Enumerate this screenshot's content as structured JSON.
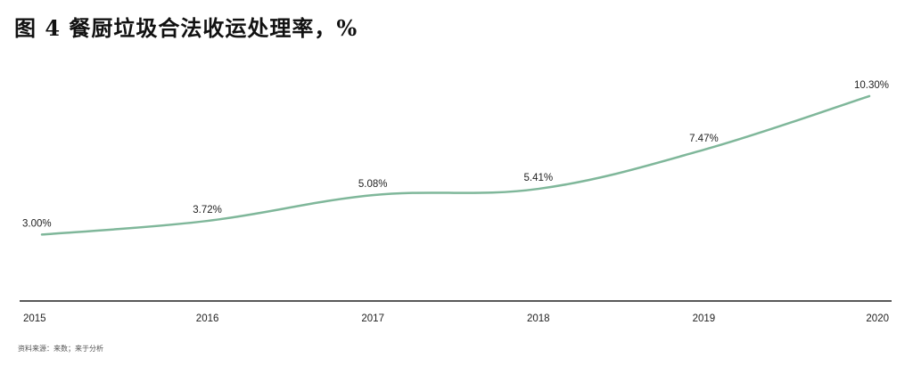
{
  "title": "图 4 餐厨垃圾合法收运处理率，%",
  "source": "资料来源：来数；来于分析",
  "colors": {
    "line": "#7fb79a",
    "axis": "#222222",
    "text": "#222222"
  },
  "chart_data": {
    "type": "line",
    "title": "图 4 餐厨垃圾合法收运处理率，%",
    "categories": [
      "2015",
      "2016",
      "2017",
      "2018",
      "2019",
      "2020"
    ],
    "series": [
      {
        "values": [
          3.0,
          3.72,
          5.08,
          5.41,
          7.47,
          10.3
        ],
        "labels": [
          "3.00%",
          "3.72%",
          "5.08%",
          "5.41%",
          "7.47%",
          "10.30%"
        ]
      }
    ],
    "xlabel": "",
    "ylabel": "",
    "ylim": [
      0,
      12
    ],
    "grid": false,
    "legend": "none"
  }
}
